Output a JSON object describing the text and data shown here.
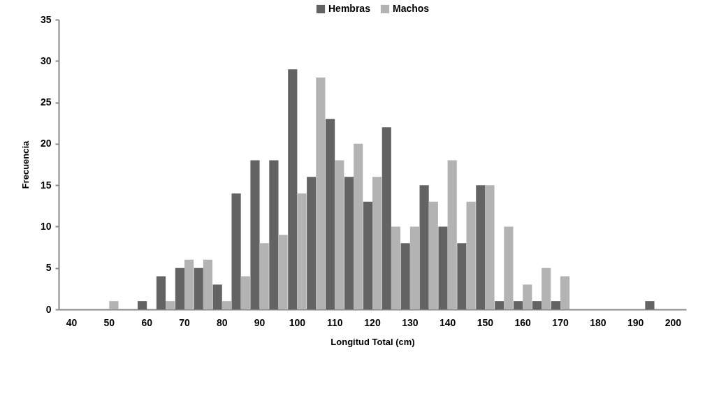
{
  "chart_data": {
    "type": "bar",
    "xlabel": "Longitud Total (cm)",
    "ylabel": "Frecuencia",
    "categories": [
      "40",
      null,
      "50",
      null,
      "60",
      null,
      "70",
      null,
      "80",
      null,
      "90",
      null,
      "100",
      null,
      "110",
      null,
      "120",
      null,
      "130",
      null,
      "140",
      null,
      "150",
      null,
      "160",
      null,
      "170",
      null,
      "180",
      null,
      "190",
      null,
      "200"
    ],
    "series": [
      {
        "name": "Hembras",
        "color": "#636363",
        "values": [
          0,
          0,
          0,
          0,
          1,
          4,
          5,
          5,
          3,
          14,
          18,
          18,
          29,
          16,
          23,
          16,
          13,
          22,
          8,
          15,
          10,
          8,
          15,
          1,
          1,
          1,
          1,
          0,
          0,
          0,
          0,
          1,
          0
        ]
      },
      {
        "name": "Machos",
        "color": "#b3b3b3",
        "values": [
          0,
          0,
          1,
          0,
          0,
          1,
          6,
          6,
          1,
          4,
          8,
          9,
          14,
          28,
          18,
          20,
          16,
          10,
          10,
          13,
          18,
          13,
          15,
          10,
          3,
          5,
          4,
          0,
          0,
          0,
          0,
          0,
          0
        ]
      }
    ],
    "ylim": [
      0,
      35
    ],
    "yticks": [
      0,
      5,
      10,
      15,
      20,
      25,
      30,
      35
    ],
    "legend": "top"
  }
}
